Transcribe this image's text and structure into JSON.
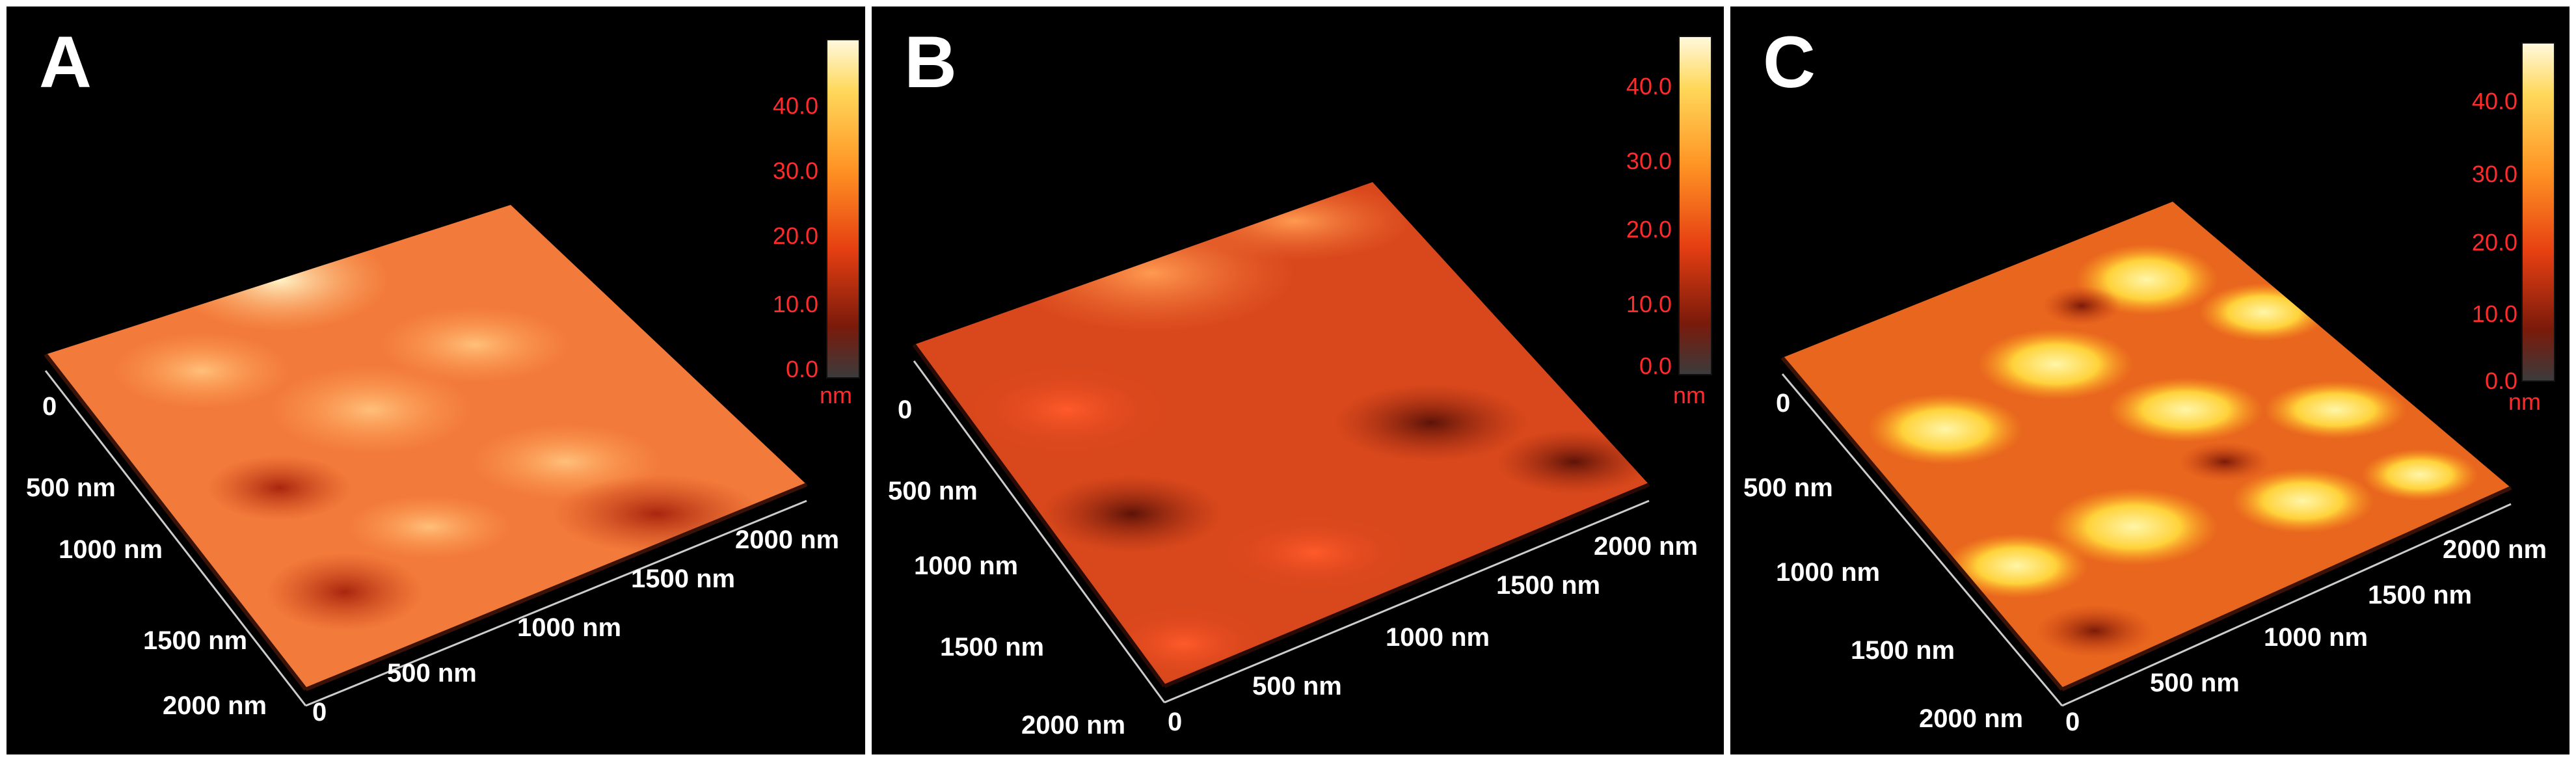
{
  "panels": [
    {
      "letter": "A",
      "colorbar": {
        "ticks": [
          "40.0",
          "30.0",
          "20.0",
          "10.0",
          "0.0"
        ],
        "unit": "nm"
      },
      "left_axis": [
        "0",
        "500 nm",
        "1000 nm",
        "1500 nm",
        "2000 nm"
      ],
      "bottom_axis": [
        "0",
        "500 nm",
        "1000 nm",
        "1500 nm",
        "2000 nm"
      ]
    },
    {
      "letter": "B",
      "colorbar": {
        "ticks": [
          "40.0",
          "30.0",
          "20.0",
          "10.0",
          "0.0"
        ],
        "unit": "nm"
      },
      "left_axis": [
        "0",
        "500 nm",
        "1000 nm",
        "1500 nm",
        "2000 nm"
      ],
      "bottom_axis": [
        "0",
        "500 nm",
        "1000 nm",
        "1500 nm",
        "2000 nm"
      ]
    },
    {
      "letter": "C",
      "colorbar": {
        "ticks": [
          "40.0",
          "30.0",
          "20.0",
          "10.0",
          "0.0"
        ],
        "unit": "nm"
      },
      "left_axis": [
        "0",
        "500 nm",
        "1000 nm",
        "1500 nm",
        "2000 nm"
      ],
      "bottom_axis": [
        "0",
        "500 nm",
        "1000 nm",
        "1500 nm",
        "2000 nm"
      ]
    }
  ],
  "colors": {
    "label_red": "#ff2b2b",
    "background": "#000000",
    "divider": "#ffffff"
  }
}
